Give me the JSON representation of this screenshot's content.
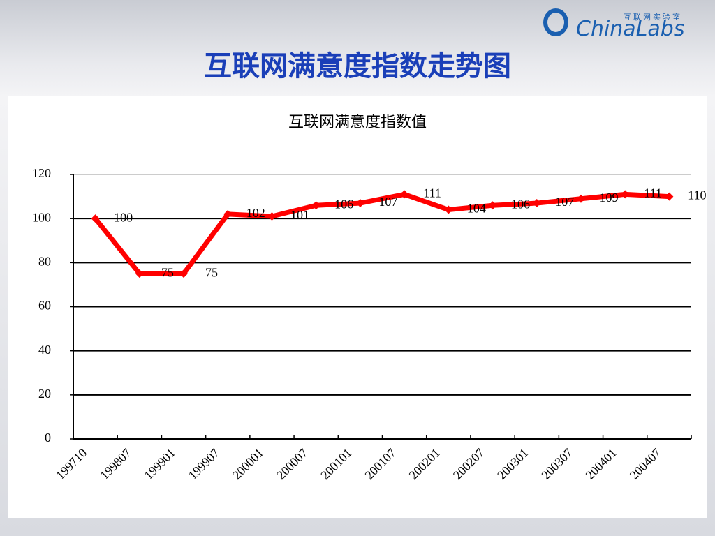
{
  "header": {
    "title": "互联网满意度指数走势图",
    "logo_small": "互联网实验室",
    "logo": "ChinaLabs"
  },
  "chart_data": {
    "type": "line",
    "title": "互联网满意度指数值",
    "categories": [
      "199710",
      "199807",
      "199901",
      "199907",
      "200001",
      "200007",
      "200101",
      "200107",
      "200201",
      "200207",
      "200301",
      "200307",
      "200401",
      "200407"
    ],
    "values": [
      100,
      75,
      75,
      102,
      101,
      106,
      107,
      111,
      104,
      106,
      107,
      109,
      111,
      110
    ],
    "color": "#ff0000",
    "ylim": [
      0,
      120
    ],
    "yticks": [
      0,
      20,
      40,
      60,
      80,
      100,
      120
    ],
    "grid": true
  }
}
